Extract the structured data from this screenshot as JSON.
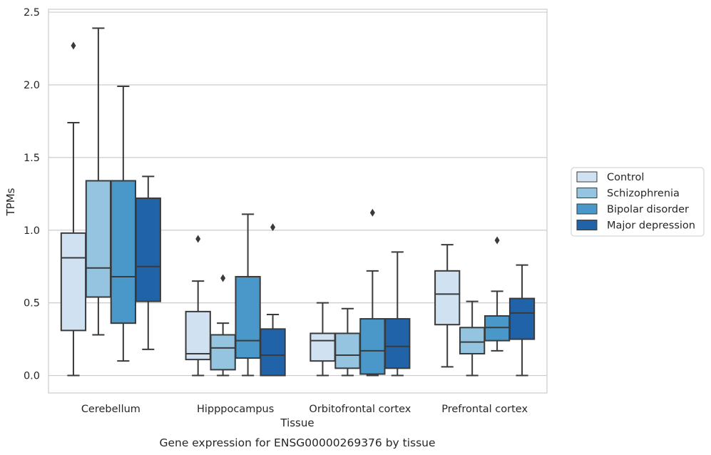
{
  "chart_data": {
    "type": "box",
    "xlabel": "Tissue",
    "ylabel": "TPMs",
    "caption": "Gene expression for ENSG00000269376 by tissue",
    "ylim": [
      -0.12,
      2.52
    ],
    "yticks": [
      0.0,
      0.5,
      1.0,
      1.5,
      2.0,
      2.5
    ],
    "ytick_labels": [
      "0.0",
      "0.5",
      "1.0",
      "1.5",
      "2.0",
      "2.5"
    ],
    "grid": "horizontal",
    "legend_position": "right",
    "categories": [
      "Cerebellum",
      "Hipppocampus",
      "Orbitofrontal cortex",
      "Prefrontal cortex"
    ],
    "series": [
      {
        "name": "Control",
        "color": "#d0e1f2",
        "boxes": [
          {
            "whisker_low": 0.0,
            "q1": 0.31,
            "median": 0.81,
            "q3": 0.98,
            "whisker_high": 1.74,
            "outliers": [
              2.27
            ]
          },
          {
            "whisker_low": 0.0,
            "q1": 0.11,
            "median": 0.15,
            "q3": 0.44,
            "whisker_high": 0.65,
            "outliers": [
              0.94
            ]
          },
          {
            "whisker_low": 0.0,
            "q1": 0.1,
            "median": 0.24,
            "q3": 0.29,
            "whisker_high": 0.5,
            "outliers": []
          },
          {
            "whisker_low": 0.06,
            "q1": 0.35,
            "median": 0.56,
            "q3": 0.72,
            "whisker_high": 0.9,
            "outliers": []
          }
        ]
      },
      {
        "name": "Schizophrenia",
        "color": "#94c4df",
        "boxes": [
          {
            "whisker_low": 0.28,
            "q1": 0.54,
            "median": 0.74,
            "q3": 1.34,
            "whisker_high": 2.39,
            "outliers": []
          },
          {
            "whisker_low": 0.0,
            "q1": 0.04,
            "median": 0.19,
            "q3": 0.28,
            "whisker_high": 0.36,
            "outliers": [
              0.67
            ]
          },
          {
            "whisker_low": 0.0,
            "q1": 0.05,
            "median": 0.14,
            "q3": 0.29,
            "whisker_high": 0.46,
            "outliers": []
          },
          {
            "whisker_low": 0.0,
            "q1": 0.15,
            "median": 0.23,
            "q3": 0.33,
            "whisker_high": 0.51,
            "outliers": []
          }
        ]
      },
      {
        "name": "Bipolar disorder",
        "color": "#4a98c9",
        "boxes": [
          {
            "whisker_low": 0.1,
            "q1": 0.36,
            "median": 0.68,
            "q3": 1.34,
            "whisker_high": 1.99,
            "outliers": []
          },
          {
            "whisker_low": 0.0,
            "q1": 0.12,
            "median": 0.24,
            "q3": 0.68,
            "whisker_high": 1.11,
            "outliers": []
          },
          {
            "whisker_low": 0.0,
            "q1": 0.01,
            "median": 0.17,
            "q3": 0.39,
            "whisker_high": 0.72,
            "outliers": [
              1.12
            ]
          },
          {
            "whisker_low": 0.17,
            "q1": 0.24,
            "median": 0.33,
            "q3": 0.41,
            "whisker_high": 0.58,
            "outliers": [
              0.93
            ]
          }
        ]
      },
      {
        "name": "Major depression",
        "color": "#2163a9",
        "boxes": [
          {
            "whisker_low": 0.18,
            "q1": 0.51,
            "median": 0.75,
            "q3": 1.22,
            "whisker_high": 1.37,
            "outliers": []
          },
          {
            "whisker_low": 0.0,
            "q1": 0.0,
            "median": 0.14,
            "q3": 0.32,
            "whisker_high": 0.42,
            "outliers": [
              1.02
            ]
          },
          {
            "whisker_low": 0.0,
            "q1": 0.05,
            "median": 0.2,
            "q3": 0.39,
            "whisker_high": 0.85,
            "outliers": []
          },
          {
            "whisker_low": 0.0,
            "q1": 0.25,
            "median": 0.43,
            "q3": 0.53,
            "whisker_high": 0.76,
            "outliers": []
          }
        ]
      }
    ]
  }
}
